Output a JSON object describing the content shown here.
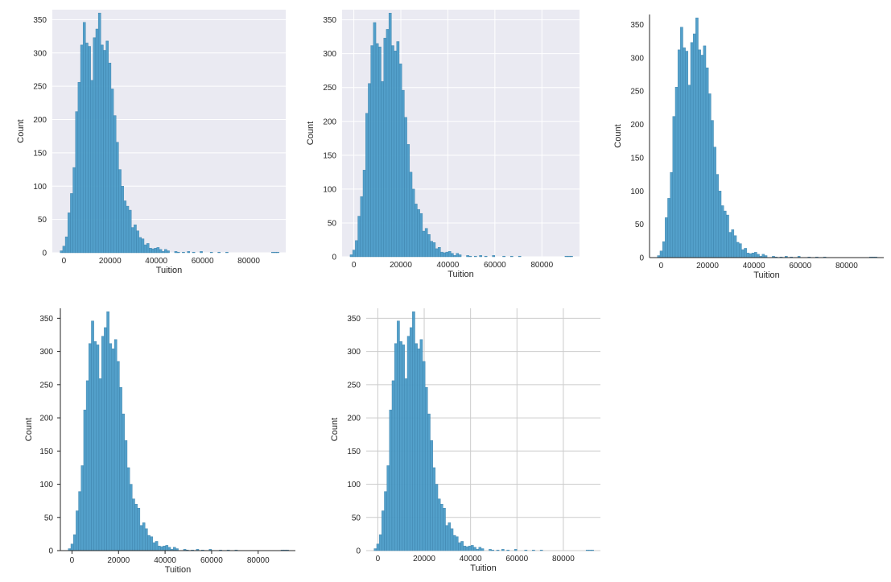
{
  "figure": {
    "layout": "2 rows: 3 panels on top, 2 panels on bottom; same histogram in 5 seaborn styles"
  },
  "chart_data": [
    {
      "type": "bar",
      "style": "darkgrid-no-xgrid",
      "background": "#eaeaf2",
      "grid": "horizontal lines only",
      "spines": "none",
      "bar_color": "#4a9bc7",
      "xlabel": "Tuition",
      "ylabel": "Count",
      "xlim": [
        -5000,
        96000
      ],
      "ylim": [
        0,
        365
      ],
      "xticks": [
        0,
        20000,
        40000,
        60000,
        80000
      ],
      "yticks": [
        0,
        50,
        100,
        150,
        200,
        250,
        300,
        350
      ],
      "bin_width": 1100,
      "bin_starts": [
        -1600,
        -500,
        600,
        1700,
        2800,
        3900,
        5000,
        6100,
        7200,
        8300,
        9400,
        10500,
        11600,
        12700,
        13800,
        14900,
        16000,
        17100,
        18200,
        19300,
        20400,
        21500,
        22600,
        23700,
        24800,
        25900,
        27000,
        28100,
        29200,
        30300,
        31400,
        32500,
        33600,
        34700,
        35800,
        36900,
        38000,
        39100,
        40200,
        41300,
        42400,
        43500,
        44600,
        47900,
        49000,
        51200,
        53400,
        55600,
        58900,
        63300,
        66600,
        70000,
        89800,
        90900,
        92000
      ],
      "values": [
        3,
        10,
        24,
        60,
        89,
        128,
        212,
        256,
        312,
        346,
        315,
        310,
        259,
        323,
        336,
        360,
        312,
        304,
        318,
        285,
        246,
        206,
        166,
        125,
        100,
        78,
        70,
        64,
        38,
        42,
        33,
        23,
        21,
        12,
        14,
        7,
        6,
        7,
        8,
        5,
        2,
        5,
        3,
        2,
        1,
        1,
        2,
        1,
        2,
        1,
        1,
        1,
        1,
        1,
        1
      ]
    },
    {
      "type": "bar",
      "style": "darkgrid",
      "background": "#eaeaf2",
      "grid": "horizontal and vertical lines",
      "spines": "none",
      "bar_color": "#4a9bc7",
      "xlabel": "Tuition",
      "ylabel": "Count",
      "xlim": [
        -5000,
        96000
      ],
      "ylim": [
        0,
        365
      ],
      "xticks": [
        0,
        20000,
        40000,
        60000,
        80000
      ],
      "yticks": [
        0,
        50,
        100,
        150,
        200,
        250,
        300,
        350
      ],
      "bin_width": 1100,
      "bin_starts": [
        -1600,
        -500,
        600,
        1700,
        2800,
        3900,
        5000,
        6100,
        7200,
        8300,
        9400,
        10500,
        11600,
        12700,
        13800,
        14900,
        16000,
        17100,
        18200,
        19300,
        20400,
        21500,
        22600,
        23700,
        24800,
        25900,
        27000,
        28100,
        29200,
        30300,
        31400,
        32500,
        33600,
        34700,
        35800,
        36900,
        38000,
        39100,
        40200,
        41300,
        42400,
        43500,
        44600,
        47900,
        49000,
        51200,
        53400,
        55600,
        58900,
        63300,
        66600,
        70000,
        89800,
        90900,
        92000
      ],
      "values": [
        3,
        10,
        24,
        60,
        89,
        128,
        212,
        256,
        312,
        346,
        315,
        310,
        259,
        323,
        336,
        360,
        312,
        304,
        318,
        285,
        246,
        206,
        166,
        125,
        100,
        78,
        70,
        64,
        38,
        42,
        33,
        23,
        21,
        12,
        14,
        7,
        6,
        7,
        8,
        5,
        2,
        5,
        3,
        2,
        1,
        1,
        2,
        1,
        2,
        1,
        1,
        1,
        1,
        1,
        1
      ]
    },
    {
      "type": "bar",
      "style": "white-despined",
      "background": "#ffffff",
      "grid": "none",
      "spines": "left and bottom",
      "bar_color": "#4a9bc7",
      "xlabel": "Tuition",
      "ylabel": "Count",
      "xlim": [
        -5000,
        96000
      ],
      "ylim": [
        0,
        365
      ],
      "xticks": [
        0,
        20000,
        40000,
        60000,
        80000
      ],
      "yticks": [
        0,
        50,
        100,
        150,
        200,
        250,
        300,
        350
      ],
      "bin_width": 1100,
      "bin_starts": [
        -1600,
        -500,
        600,
        1700,
        2800,
        3900,
        5000,
        6100,
        7200,
        8300,
        9400,
        10500,
        11600,
        12700,
        13800,
        14900,
        16000,
        17100,
        18200,
        19300,
        20400,
        21500,
        22600,
        23700,
        24800,
        25900,
        27000,
        28100,
        29200,
        30300,
        31400,
        32500,
        33600,
        34700,
        35800,
        36900,
        38000,
        39100,
        40200,
        41300,
        42400,
        43500,
        44600,
        47900,
        49000,
        51200,
        53400,
        55600,
        58900,
        63300,
        66600,
        70000,
        89800,
        90900,
        92000
      ],
      "values": [
        3,
        10,
        24,
        60,
        89,
        128,
        212,
        256,
        312,
        346,
        315,
        310,
        259,
        323,
        336,
        360,
        312,
        304,
        318,
        285,
        246,
        206,
        166,
        125,
        100,
        78,
        70,
        64,
        38,
        42,
        33,
        23,
        21,
        12,
        14,
        7,
        6,
        7,
        8,
        5,
        2,
        5,
        3,
        2,
        1,
        1,
        2,
        1,
        2,
        1,
        1,
        1,
        1,
        1,
        1
      ]
    },
    {
      "type": "bar",
      "style": "ticks-despined",
      "background": "#ffffff",
      "grid": "none",
      "spines": "left and bottom",
      "bar_color": "#4a9bc7",
      "xlabel": "Tuition",
      "ylabel": "Count",
      "xlim": [
        -5000,
        96000
      ],
      "ylim": [
        0,
        365
      ],
      "xticks": [
        0,
        20000,
        40000,
        60000,
        80000
      ],
      "yticks": [
        0,
        50,
        100,
        150,
        200,
        250,
        300,
        350
      ],
      "bin_width": 1100,
      "bin_starts": [
        -1600,
        -500,
        600,
        1700,
        2800,
        3900,
        5000,
        6100,
        7200,
        8300,
        9400,
        10500,
        11600,
        12700,
        13800,
        14900,
        16000,
        17100,
        18200,
        19300,
        20400,
        21500,
        22600,
        23700,
        24800,
        25900,
        27000,
        28100,
        29200,
        30300,
        31400,
        32500,
        33600,
        34700,
        35800,
        36900,
        38000,
        39100,
        40200,
        41300,
        42400,
        43500,
        44600,
        47900,
        49000,
        51200,
        53400,
        55600,
        58900,
        63300,
        66600,
        70000,
        89800,
        90900,
        92000
      ],
      "values": [
        3,
        10,
        24,
        60,
        89,
        128,
        212,
        256,
        312,
        346,
        315,
        310,
        259,
        323,
        336,
        360,
        312,
        304,
        318,
        285,
        246,
        206,
        166,
        125,
        100,
        78,
        70,
        64,
        38,
        42,
        33,
        23,
        21,
        12,
        14,
        7,
        6,
        7,
        8,
        5,
        2,
        5,
        3,
        2,
        1,
        1,
        2,
        1,
        2,
        1,
        1,
        1,
        1,
        1,
        1
      ]
    },
    {
      "type": "bar",
      "style": "whitegrid",
      "background": "#ffffff",
      "grid": "horizontal and vertical lines",
      "spines": "none",
      "bar_color": "#4a9bc7",
      "xlabel": "Tuition",
      "ylabel": "Count",
      "xlim": [
        -5000,
        96000
      ],
      "ylim": [
        0,
        365
      ],
      "xticks": [
        0,
        20000,
        40000,
        60000,
        80000
      ],
      "yticks": [
        0,
        50,
        100,
        150,
        200,
        250,
        300,
        350
      ],
      "bin_width": 1100,
      "bin_starts": [
        -1600,
        -500,
        600,
        1700,
        2800,
        3900,
        5000,
        6100,
        7200,
        8300,
        9400,
        10500,
        11600,
        12700,
        13800,
        14900,
        16000,
        17100,
        18200,
        19300,
        20400,
        21500,
        22600,
        23700,
        24800,
        25900,
        27000,
        28100,
        29200,
        30300,
        31400,
        32500,
        33600,
        34700,
        35800,
        36900,
        38000,
        39100,
        40200,
        41300,
        42400,
        43500,
        44600,
        47900,
        49000,
        51200,
        53400,
        55600,
        58900,
        63300,
        66600,
        70000,
        89800,
        90900,
        92000
      ],
      "values": [
        3,
        10,
        24,
        60,
        89,
        128,
        212,
        256,
        312,
        346,
        315,
        310,
        259,
        323,
        336,
        360,
        312,
        304,
        318,
        285,
        246,
        206,
        166,
        125,
        100,
        78,
        70,
        64,
        38,
        42,
        33,
        23,
        21,
        12,
        14,
        7,
        6,
        7,
        8,
        5,
        2,
        5,
        3,
        2,
        1,
        1,
        2,
        1,
        2,
        1,
        1,
        1,
        1,
        1,
        1
      ]
    }
  ]
}
